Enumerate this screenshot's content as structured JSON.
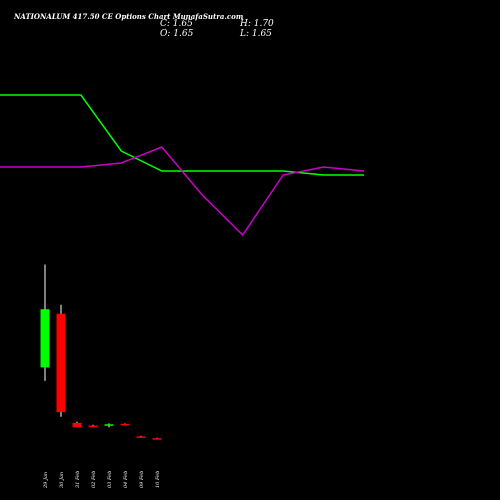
{
  "header": {
    "title": "NATIONALUM 417.50  CE Options  Chart MunafaSutra.com",
    "close": "C: 1.65",
    "high": "H: 1.70",
    "open": "O: 1.65",
    "low": "L: 1.65"
  },
  "colors": {
    "background": "#000000",
    "up": "#00ff00",
    "down": "#ff0000",
    "wick": "#ffffff",
    "line_green": "#00ff00",
    "line_magenta": "#cc00cc"
  },
  "chart_data": {
    "type": "candlestick",
    "categories": [
      "29 Jan",
      "30 Jan",
      "31 Feb",
      "02 Feb",
      "03 Feb",
      "04 Feb",
      "09 Feb",
      "10 Feb"
    ],
    "candles": [
      {
        "open": 16.3,
        "high": 18.6,
        "low": 16.0,
        "close": 17.6
      },
      {
        "open": 17.5,
        "high": 17.7,
        "low": 15.2,
        "close": 15.3
      },
      {
        "open": 15.06,
        "high": 15.09,
        "low": 14.98,
        "close": 14.96
      },
      {
        "open": 15.0,
        "high": 15.02,
        "low": 14.97,
        "close": 14.99
      },
      {
        "open": 15.02,
        "high": 15.05,
        "low": 14.96,
        "close": 15.03
      },
      {
        "open": 15.04,
        "high": 15.05,
        "low": 15.01,
        "close": 15.02
      },
      {
        "open": 14.76,
        "high": 14.77,
        "low": 14.74,
        "close": 14.75
      },
      {
        "open": 14.72,
        "high": 14.73,
        "low": 14.7,
        "close": 14.71
      }
    ],
    "ylim": [
      14.5,
      18.7
    ],
    "line_series": [
      {
        "color": "#00ff00",
        "values": [
          30,
          30,
          30,
          16,
          11,
          11,
          11,
          11,
          10,
          10
        ]
      },
      {
        "color": "#cc00cc",
        "values": [
          12,
          12,
          12,
          13,
          17,
          5,
          -5,
          10,
          12,
          11
        ]
      }
    ],
    "line_ylim": [
      -10,
      40
    ]
  }
}
